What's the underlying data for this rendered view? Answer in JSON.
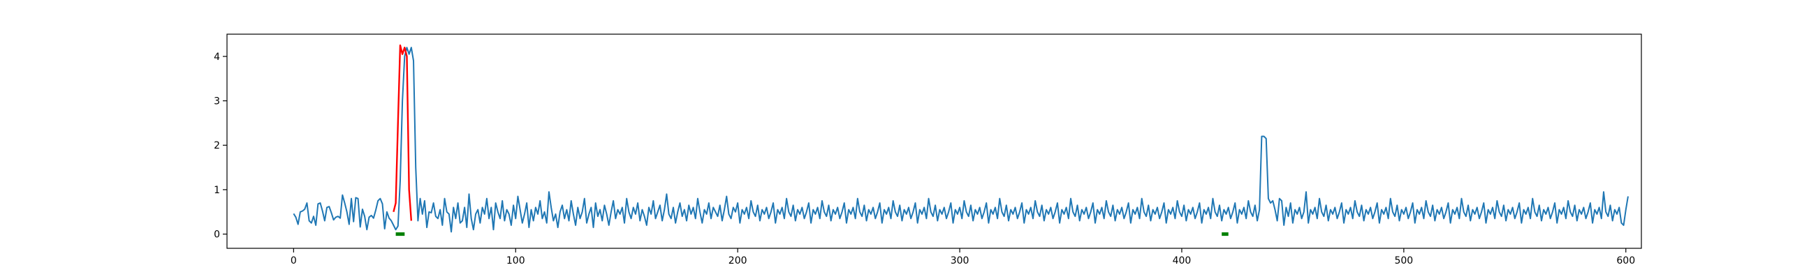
{
  "chart_data": {
    "type": "line",
    "title": "",
    "xlabel": "",
    "ylabel": "",
    "xlim": [
      -30,
      607
    ],
    "ylim": [
      -0.32,
      4.5
    ],
    "xticks": [
      0,
      100,
      200,
      300,
      400,
      500,
      600
    ],
    "yticks": [
      0,
      1,
      2,
      3,
      4
    ],
    "grid": false,
    "legend": "none",
    "colors": {
      "main": "#1f77b4",
      "anomaly": "#ff0000",
      "marker": "#008000"
    },
    "series": [
      {
        "role": "main",
        "x_start": 0,
        "values": [
          0.46,
          0.38,
          0.22,
          0.5,
          0.52,
          0.56,
          0.7,
          0.3,
          0.25,
          0.4,
          0.2,
          0.68,
          0.7,
          0.52,
          0.3,
          0.6,
          0.62,
          0.48,
          0.32,
          0.38,
          0.4,
          0.36,
          0.88,
          0.7,
          0.5,
          0.22,
          0.8,
          0.28,
          0.82,
          0.8,
          0.16,
          0.56,
          0.4,
          0.1,
          0.38,
          0.42,
          0.36,
          0.54,
          0.75,
          0.8,
          0.68,
          0.12,
          0.5,
          0.36,
          0.3,
          0.2,
          0.1,
          0.18,
          1.2,
          3.0,
          4.0,
          4.2,
          4.05,
          4.2,
          3.9,
          1.5,
          0.3,
          0.8,
          0.45,
          0.75,
          0.15,
          0.5,
          0.48,
          0.7,
          0.4,
          0.35,
          0.55,
          0.2,
          0.8,
          0.5,
          0.45,
          0.05,
          0.6,
          0.35,
          0.7,
          0.25,
          0.3,
          0.6,
          0.15,
          0.9,
          0.35,
          0.1,
          0.45,
          0.55,
          0.25,
          0.6,
          0.45,
          0.8,
          0.35,
          0.6,
          0.1,
          0.7,
          0.5,
          0.35,
          0.75,
          0.3,
          0.55,
          0.45,
          0.2,
          0.65,
          0.35,
          0.85,
          0.55,
          0.25,
          0.45,
          0.7,
          0.15,
          0.55,
          0.3,
          0.6,
          0.45,
          0.75,
          0.35,
          0.5,
          0.25,
          0.95,
          0.6,
          0.3,
          0.45,
          0.15,
          0.5,
          0.65,
          0.35,
          0.55,
          0.3,
          0.75,
          0.45,
          0.2,
          0.6,
          0.35,
          0.5,
          0.8,
          0.25,
          0.45,
          0.6,
          0.15,
          0.7,
          0.4,
          0.55,
          0.3,
          0.65,
          0.45,
          0.2,
          0.5,
          0.75,
          0.35,
          0.55,
          0.45,
          0.6,
          0.25,
          0.8,
          0.5,
          0.35,
          0.6,
          0.45,
          0.7,
          0.3,
          0.55,
          0.4,
          0.2,
          0.6,
          0.45,
          0.75,
          0.35,
          0.5,
          0.65,
          0.3,
          0.55,
          0.9,
          0.45,
          0.35,
          0.6,
          0.25,
          0.5,
          0.7,
          0.4,
          0.55,
          0.3,
          0.65,
          0.45,
          0.6,
          0.35,
          0.8,
          0.5,
          0.25,
          0.55,
          0.45,
          0.7,
          0.35,
          0.6,
          0.5,
          0.4,
          0.65,
          0.3,
          0.55,
          0.85,
          0.45,
          0.35,
          0.6,
          0.5,
          0.7,
          0.25,
          0.55,
          0.45,
          0.6,
          0.35,
          0.75,
          0.5,
          0.4,
          0.65,
          0.3,
          0.55,
          0.45,
          0.6,
          0.35,
          0.5,
          0.7,
          0.25,
          0.55,
          0.45,
          0.6,
          0.35,
          0.8,
          0.5,
          0.4,
          0.65,
          0.3,
          0.55,
          0.45,
          0.6,
          0.35,
          0.5,
          0.7,
          0.25,
          0.55,
          0.45,
          0.6,
          0.35,
          0.75,
          0.5,
          0.4,
          0.65,
          0.3,
          0.55,
          0.45,
          0.6,
          0.35,
          0.5,
          0.7,
          0.25,
          0.55,
          0.45,
          0.6,
          0.35,
          0.8,
          0.5,
          0.4,
          0.65,
          0.3,
          0.55,
          0.45,
          0.6,
          0.35,
          0.5,
          0.7,
          0.25,
          0.55,
          0.45,
          0.6,
          0.35,
          0.75,
          0.5,
          0.4,
          0.65,
          0.3,
          0.55,
          0.45,
          0.6,
          0.35,
          0.5,
          0.7,
          0.25,
          0.55,
          0.45,
          0.6,
          0.35,
          0.8,
          0.5,
          0.4,
          0.65,
          0.3,
          0.55,
          0.45,
          0.6,
          0.35,
          0.5,
          0.7,
          0.25,
          0.55,
          0.45,
          0.6,
          0.35,
          0.75,
          0.5,
          0.4,
          0.65,
          0.3,
          0.55,
          0.45,
          0.6,
          0.35,
          0.5,
          0.7,
          0.25,
          0.55,
          0.45,
          0.6,
          0.35,
          0.8,
          0.5,
          0.4,
          0.65,
          0.3,
          0.55,
          0.45,
          0.6,
          0.35,
          0.5,
          0.7,
          0.25,
          0.55,
          0.45,
          0.6,
          0.35,
          0.75,
          0.5,
          0.4,
          0.65,
          0.3,
          0.55,
          0.45,
          0.6,
          0.35,
          0.5,
          0.7,
          0.25,
          0.55,
          0.45,
          0.6,
          0.35,
          0.8,
          0.5,
          0.4,
          0.65,
          0.3,
          0.55,
          0.45,
          0.6,
          0.35,
          0.5,
          0.7,
          0.25,
          0.55,
          0.45,
          0.6,
          0.35,
          0.75,
          0.5,
          0.4,
          0.65,
          0.3,
          0.55,
          0.45,
          0.6,
          0.35,
          0.5,
          0.7,
          0.25,
          0.55,
          0.45,
          0.6,
          0.35,
          0.8,
          0.5,
          0.4,
          0.65,
          0.3,
          0.55,
          0.45,
          0.6,
          0.35,
          0.5,
          0.7,
          0.25,
          0.55,
          0.45,
          0.6,
          0.35,
          0.75,
          0.5,
          0.4,
          0.65,
          0.3,
          0.55,
          0.45,
          0.6,
          0.35,
          0.5,
          0.7,
          0.25,
          0.55,
          0.45,
          0.6,
          0.35,
          0.8,
          0.5,
          0.4,
          0.65,
          0.3,
          0.55,
          0.45,
          0.6,
          0.35,
          0.5,
          0.7,
          0.25,
          0.55,
          0.45,
          0.6,
          0.35,
          0.75,
          0.5,
          0.4,
          0.65,
          0.3,
          0.55,
          2.2,
          2.2,
          2.15,
          0.8,
          0.7,
          0.75,
          0.55,
          0.3,
          0.8,
          0.75,
          0.2,
          0.6,
          0.4,
          0.7,
          0.25,
          0.55,
          0.45,
          0.6,
          0.35,
          0.5,
          0.95,
          0.25,
          0.55,
          0.45,
          0.6,
          0.35,
          0.8,
          0.5,
          0.4,
          0.65,
          0.3,
          0.55,
          0.45,
          0.6,
          0.35,
          0.5,
          0.7,
          0.25,
          0.55,
          0.45,
          0.6,
          0.35,
          0.75,
          0.5,
          0.4,
          0.65,
          0.3,
          0.55,
          0.45,
          0.6,
          0.35,
          0.5,
          0.7,
          0.25,
          0.55,
          0.45,
          0.6,
          0.35,
          0.8,
          0.5,
          0.4,
          0.65,
          0.3,
          0.55,
          0.45,
          0.6,
          0.35,
          0.5,
          0.7,
          0.25,
          0.55,
          0.45,
          0.6,
          0.35,
          0.75,
          0.5,
          0.4,
          0.65,
          0.3,
          0.55,
          0.45,
          0.6,
          0.35,
          0.5,
          0.7,
          0.25,
          0.55,
          0.45,
          0.6,
          0.35,
          0.8,
          0.5,
          0.4,
          0.65,
          0.3,
          0.55,
          0.45,
          0.6,
          0.35,
          0.5,
          0.7,
          0.25,
          0.55,
          0.45,
          0.6,
          0.35,
          0.75,
          0.5,
          0.4,
          0.65,
          0.3,
          0.55,
          0.45,
          0.6,
          0.35,
          0.5,
          0.7,
          0.25,
          0.55,
          0.45,
          0.6,
          0.35,
          0.8,
          0.5,
          0.4,
          0.65,
          0.3,
          0.55,
          0.45,
          0.6,
          0.35,
          0.5,
          0.7,
          0.25,
          0.55,
          0.45,
          0.6,
          0.35,
          0.75,
          0.5,
          0.4,
          0.65,
          0.3,
          0.55,
          0.45,
          0.6,
          0.35,
          0.5,
          0.7,
          0.25,
          0.55,
          0.45,
          0.6,
          0.35,
          0.95,
          0.5,
          0.4,
          0.65,
          0.3,
          0.55,
          0.45,
          0.6,
          0.25,
          0.2,
          0.55,
          0.85
        ]
      },
      {
        "role": "anomaly",
        "x": [
          45,
          46,
          47,
          48,
          49,
          50,
          51,
          52,
          53
        ],
        "values": [
          0.5,
          0.7,
          2.5,
          4.25,
          4.05,
          4.2,
          4.0,
          1.0,
          0.3
        ]
      }
    ],
    "markers": [
      {
        "x_start": 46,
        "x_end": 50,
        "y": 0
      },
      {
        "x_start": 418,
        "x_end": 421,
        "y": 0
      }
    ]
  }
}
